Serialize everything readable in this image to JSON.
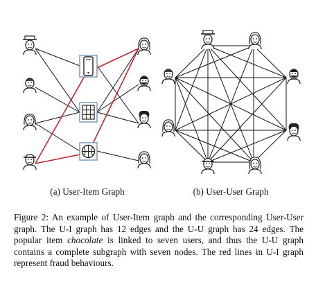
{
  "panels": [
    {
      "label": "(a) User-Item Graph"
    },
    {
      "label": "(b) User-User Graph"
    }
  ],
  "caption": {
    "part1": "Figure 2: An example of User-Item graph and the corresponding User-User graph. The U-I graph has 12 edges and the U-U graph has 24 edges. The popular item ",
    "emphasis": "chocolate",
    "part2": " is linked to seven users, and thus the U-U graph contains a complete subgraph with seven nodes. The red lines in U-I graph represent fraud behaviours."
  },
  "icons": {
    "left_users": [
      "user-with-hat-icon",
      "user-icon",
      "user-woman-icon",
      "user-with-cap-icon"
    ],
    "items": [
      "phone-icon",
      "chocolate-icon",
      "basketball-icon"
    ],
    "right_users": [
      "user-woman-icon",
      "user-bearded-icon",
      "user-curly-icon",
      "user-woman-icon"
    ]
  },
  "colors": {
    "edge": "#111111",
    "fraud_edge": "#c0262c",
    "item_border": "#7a9cc0"
  }
}
